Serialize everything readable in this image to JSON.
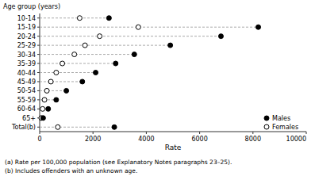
{
  "chart_data": {
    "type": "dot",
    "orientation": "horizontal",
    "ylabel": "Age group (years)",
    "xlabel": "Rate",
    "categories": [
      "10-14",
      "15-19",
      "20-24",
      "25-29",
      "30-34",
      "35-39",
      "40-44",
      "45-49",
      "50-54",
      "55-59",
      "60-64",
      "65+",
      "Total(b)"
    ],
    "series": [
      {
        "name": "Males",
        "color": "#000000",
        "marker": "filled",
        "values": [
          2600,
          8200,
          6800,
          4900,
          3550,
          2850,
          2100,
          1600,
          1000,
          620,
          320,
          130,
          2800
        ]
      },
      {
        "name": "Females",
        "color": "#000000",
        "marker": "open",
        "values": [
          1500,
          3700,
          2250,
          1700,
          1300,
          850,
          620,
          420,
          270,
          180,
          110,
          60,
          680
        ]
      }
    ],
    "color": "#aaaaaa",
    "line_style": "dashed",
    "xlim": [
      0,
      10000
    ],
    "xticks": [
      0,
      2000,
      4000,
      6000,
      8000,
      10000
    ],
    "grid": false,
    "legend": "lower right",
    "annotations": [
      "(a) Rate per 100,000 population (see Explanatory Notes paragraphs 23–25).",
      "(b) Includes offenders with an unknown age."
    ]
  }
}
